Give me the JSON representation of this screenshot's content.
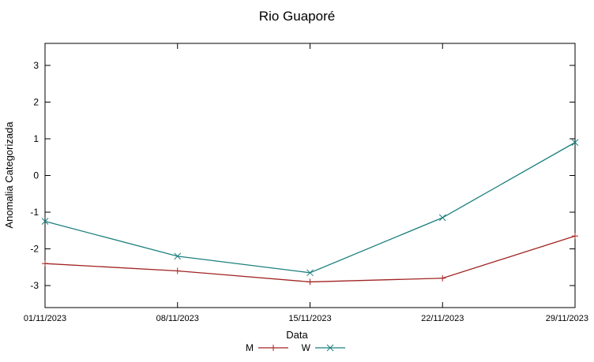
{
  "chart_data": {
    "type": "line",
    "title": "Rio Guaporé",
    "xlabel": "Data",
    "ylabel": "Anomalia Categorizada",
    "categories": [
      "01/11/2023",
      "08/11/2023",
      "15/11/2023",
      "22/11/2023",
      "29/11/2023"
    ],
    "y_ticks": [
      -3,
      -2,
      -1,
      0,
      1,
      2,
      3
    ],
    "ylim": [
      -3.6,
      3.6
    ],
    "grid": false,
    "legend_position": "bottom-center",
    "frame_color": "#000000",
    "series": [
      {
        "name": "M",
        "color": "#a02423",
        "marker": "plus",
        "values": [
          -2.4,
          -2.6,
          -2.9,
          -2.8,
          -1.65
        ]
      },
      {
        "name": "W",
        "color": "#1b7f7e",
        "marker": "cross",
        "values": [
          -1.25,
          -2.2,
          -2.65,
          -1.15,
          0.9
        ]
      }
    ]
  }
}
